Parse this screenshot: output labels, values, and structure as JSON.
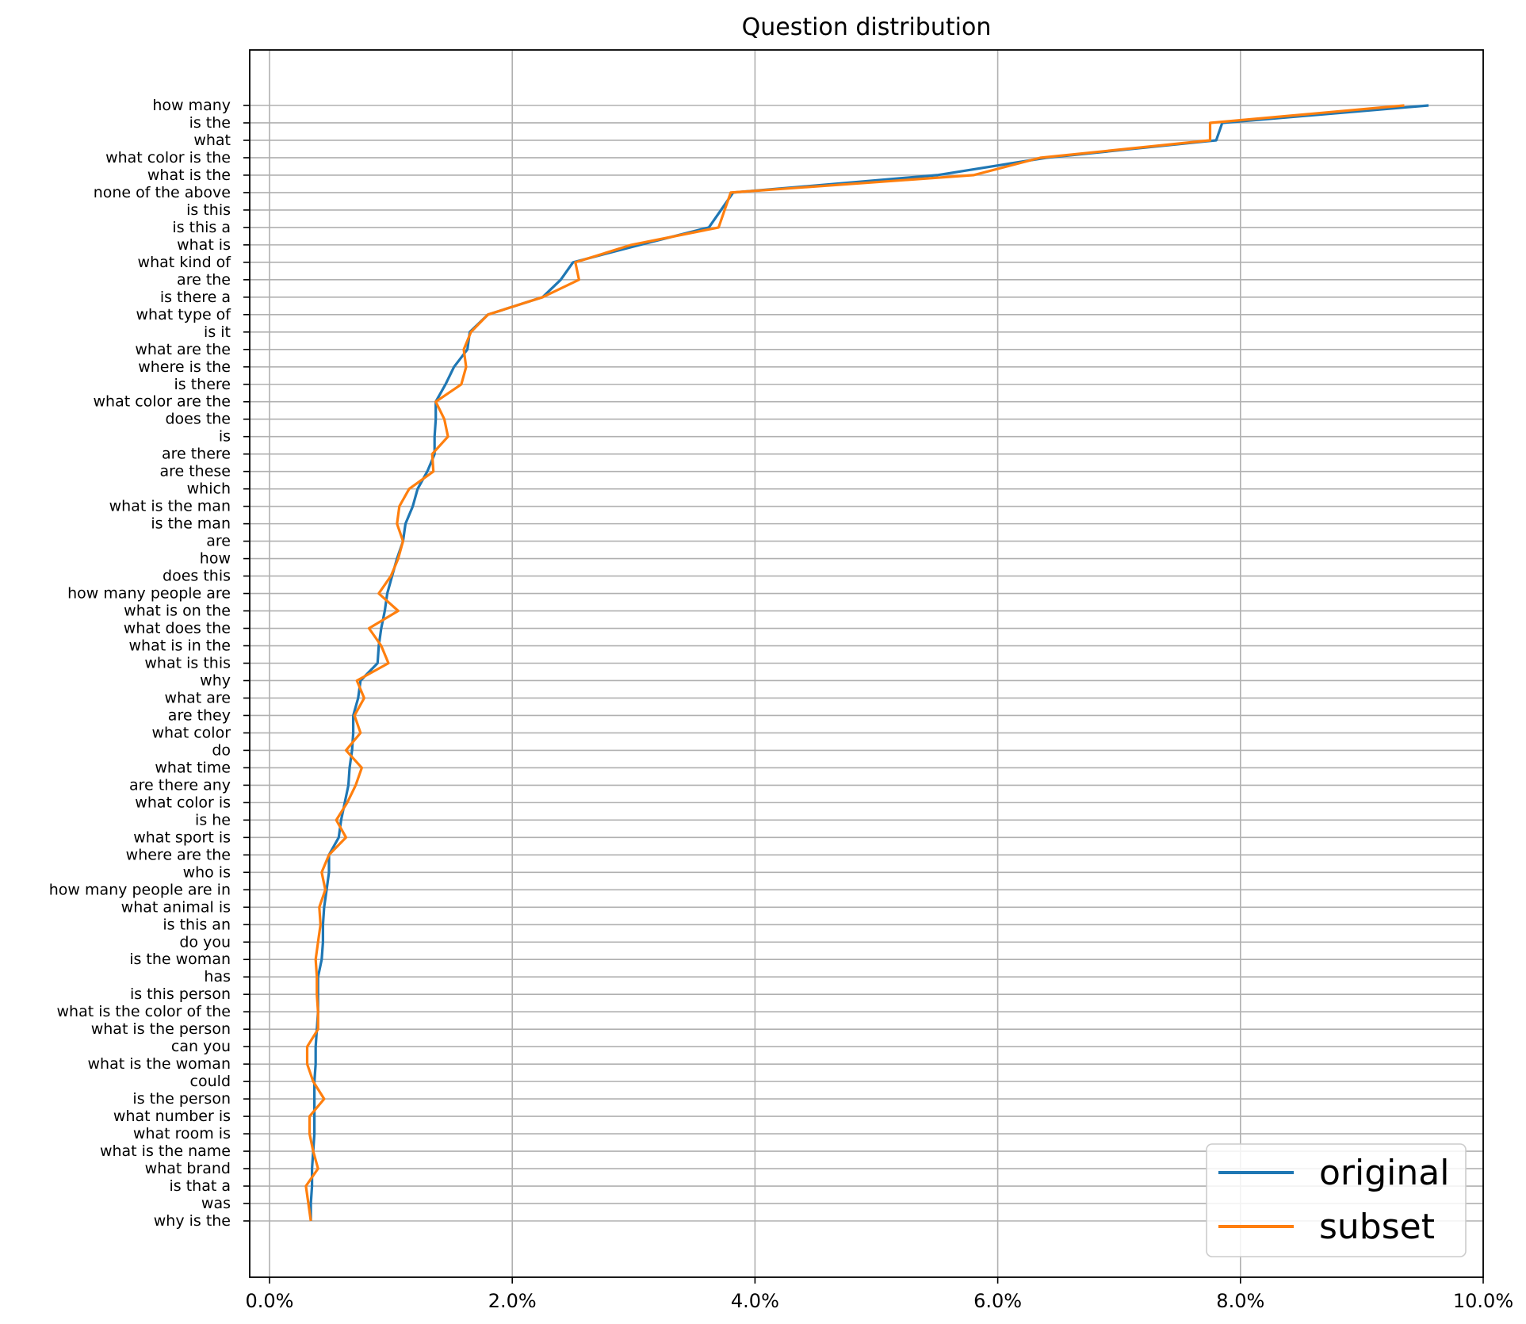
{
  "chart_data": {
    "type": "line",
    "title": "Question distribution",
    "orientation": "horizontal",
    "categories": [
      "how many",
      "is the",
      "what",
      "what color is the",
      "what is the",
      "none of the above",
      "is this",
      "is this a",
      "what is",
      "what kind of",
      "are the",
      "is there a",
      "what type of",
      "is it",
      "what are the",
      "where is the",
      "is there",
      "what color are the",
      "does the",
      "is",
      "are there",
      "are these",
      "which",
      "what is the man",
      "is the man",
      "are",
      "how",
      "does this",
      "how many people are",
      "what is on the",
      "what does the",
      "what is in the",
      "what is this",
      "why",
      "what are",
      "are they",
      "what color",
      "do",
      "what time",
      "are there any",
      "what color is",
      "is he",
      "what sport is",
      "where are the",
      "who is",
      "how many people are in",
      "what animal is",
      "is this an",
      "do you",
      "is the woman",
      "has",
      "is this person",
      "what is the color of the",
      "what is the person",
      "can you",
      "what is the woman",
      "could",
      "is the person",
      "what number is",
      "what room is",
      "what is the name",
      "what brand",
      "is that a",
      "was",
      "why is the"
    ],
    "xlim": [
      0,
      10
    ],
    "x_ticks": [
      "0.0%",
      "2.0%",
      "4.0%",
      "6.0%",
      "8.0%",
      "10.0%"
    ],
    "x_unit": "%",
    "grid": true,
    "legend_position": "lower-right",
    "series": [
      {
        "name": "original",
        "color": "#1f77b4",
        "values": [
          9.55,
          7.85,
          7.8,
          6.4,
          5.5,
          3.82,
          3.72,
          3.62,
          3.05,
          2.5,
          2.4,
          2.25,
          1.8,
          1.65,
          1.63,
          1.52,
          1.45,
          1.37,
          1.37,
          1.36,
          1.36,
          1.3,
          1.22,
          1.18,
          1.12,
          1.1,
          1.05,
          1.01,
          0.97,
          0.95,
          0.92,
          0.9,
          0.89,
          0.75,
          0.73,
          0.69,
          0.69,
          0.68,
          0.66,
          0.65,
          0.62,
          0.59,
          0.57,
          0.49,
          0.49,
          0.47,
          0.45,
          0.44,
          0.44,
          0.43,
          0.4,
          0.4,
          0.4,
          0.39,
          0.38,
          0.38,
          0.37,
          0.37,
          0.37,
          0.37,
          0.36,
          0.35,
          0.35,
          0.34,
          0.34
        ]
      },
      {
        "name": "subset",
        "color": "#ff7f0e",
        "values": [
          9.35,
          7.75,
          7.75,
          6.35,
          5.8,
          3.8,
          3.75,
          3.7,
          2.98,
          2.52,
          2.55,
          2.25,
          1.8,
          1.66,
          1.6,
          1.62,
          1.58,
          1.37,
          1.44,
          1.47,
          1.34,
          1.35,
          1.15,
          1.07,
          1.05,
          1.1,
          1.06,
          1.0,
          0.9,
          1.06,
          0.82,
          0.92,
          0.98,
          0.72,
          0.78,
          0.7,
          0.75,
          0.63,
          0.76,
          0.71,
          0.64,
          0.55,
          0.63,
          0.49,
          0.43,
          0.46,
          0.41,
          0.42,
          0.4,
          0.38,
          0.39,
          0.39,
          0.4,
          0.4,
          0.31,
          0.31,
          0.36,
          0.45,
          0.33,
          0.33,
          0.36,
          0.4,
          0.3,
          0.32,
          0.34
        ]
      }
    ]
  }
}
